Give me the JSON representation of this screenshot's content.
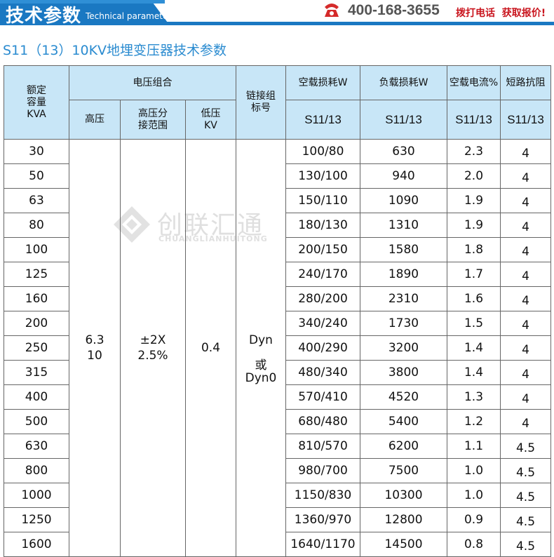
{
  "banner": {
    "title": "技术参数",
    "subtitle": "Technical parameter",
    "phone": "400-168-3655",
    "call_text": "拨打电话  获取报价!",
    "accent": "#1a78c2",
    "call_color": "#c9151e"
  },
  "page_title": "S11（13）10KV地埋变压器技术参数",
  "watermark": {
    "name": "创联汇通",
    "sub": "CHUANGLIANHUITONG"
  },
  "table": {
    "headers": {
      "capacity": "额定\n容量\nKVA",
      "voltage_group": "电压组合",
      "hv": "高压",
      "hv_tap": "高压分\n接范围",
      "lv": "低压\nKV",
      "connection": "链接组\n标号",
      "no_load_loss": "空载损耗W",
      "load_loss": "负载损耗W",
      "no_load_current": "空载电流%",
      "short_circuit": "短路抗阻",
      "series": "S11/13"
    },
    "merged": {
      "hv": "6.3\n10",
      "hv_tap": "±2X\n2.5%",
      "lv": "0.4",
      "connection": "Dyn\n\n或\nDyn0"
    },
    "rows": [
      {
        "kva": "30",
        "no_load": "100/80",
        "load": "630",
        "current": "2.3",
        "impedance": "4"
      },
      {
        "kva": "50",
        "no_load": "130/100",
        "load": "940",
        "current": "2.0",
        "impedance": "4"
      },
      {
        "kva": "63",
        "no_load": "150/110",
        "load": "1090",
        "current": "1.9",
        "impedance": "4"
      },
      {
        "kva": "80",
        "no_load": "180/130",
        "load": "1310",
        "current": "1.9",
        "impedance": "4"
      },
      {
        "kva": "100",
        "no_load": "200/150",
        "load": "1580",
        "current": "1.8",
        "impedance": "4"
      },
      {
        "kva": "125",
        "no_load": "240/170",
        "load": "1890",
        "current": "1.7",
        "impedance": "4"
      },
      {
        "kva": "160",
        "no_load": "280/200",
        "load": "2310",
        "current": "1.6",
        "impedance": "4"
      },
      {
        "kva": "200",
        "no_load": "340/240",
        "load": "1730",
        "current": "1.5",
        "impedance": "4"
      },
      {
        "kva": "250",
        "no_load": "400/290",
        "load": "3200",
        "current": "1.4",
        "impedance": "4"
      },
      {
        "kva": "315",
        "no_load": "480/340",
        "load": "3800",
        "current": "1.4",
        "impedance": "4"
      },
      {
        "kva": "400",
        "no_load": "570/410",
        "load": "4520",
        "current": "1.3",
        "impedance": "4"
      },
      {
        "kva": "500",
        "no_load": "680/480",
        "load": "5400",
        "current": "1.2",
        "impedance": "4"
      },
      {
        "kva": "630",
        "no_load": "810/570",
        "load": "6200",
        "current": "1.1",
        "impedance": "4.5"
      },
      {
        "kva": "800",
        "no_load": "980/700",
        "load": "7500",
        "current": "1.0",
        "impedance": "4.5"
      },
      {
        "kva": "1000",
        "no_load": "1150/830",
        "load": "10300",
        "current": "1.0",
        "impedance": "4.5"
      },
      {
        "kva": "1250",
        "no_load": "1360/970",
        "load": "12800",
        "current": "0.9",
        "impedance": "4.5"
      },
      {
        "kva": "1600",
        "no_load": "1640/1170",
        "load": "14500",
        "current": "0.8",
        "impedance": "4.5"
      }
    ]
  }
}
